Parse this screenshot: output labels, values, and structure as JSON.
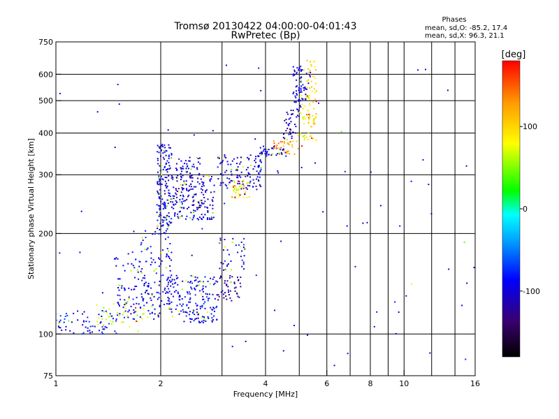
{
  "header": {
    "title": "Tromsø 20130422 04:00:00-04:01:43",
    "subtitle": "RwPretec (Bp)"
  },
  "stats": {
    "heading": "Phases",
    "line_o": "mean, sd,O: -85.2, 17.4",
    "line_x": "mean, sd,X: 96.3, 21.1"
  },
  "colorbar": {
    "label": "[deg]",
    "ticks": [
      "100",
      "0",
      "-100"
    ],
    "tick_values": [
      100,
      0,
      -100
    ],
    "range": [
      -180,
      180
    ],
    "colors": [
      "#000000",
      "#3a0070",
      "#0000ff",
      "#00aaff",
      "#00ffff",
      "#00ff00",
      "#ffff00",
      "#ff9900",
      "#ff0000"
    ]
  },
  "chart_data": {
    "type": "scatter",
    "title": "Tromsø 20130422 04:00:00-04:01:43",
    "subtitle": "RwPretec (Bp)",
    "xlabel": "Frequency [MHz]",
    "ylabel": "Stationary phase Virtual Height [km]",
    "x_scale": "log",
    "y_scale": "log",
    "xlim": [
      1,
      16
    ],
    "ylim": [
      75,
      750
    ],
    "xticks": [
      1,
      2,
      4,
      6,
      8,
      10,
      16
    ],
    "xtick_labels": [
      "1",
      "2",
      "4",
      "6",
      "8",
      "10",
      "16"
    ],
    "x_minor": [
      3,
      5,
      7,
      9,
      12,
      14
    ],
    "yticks": [
      75,
      100,
      200,
      300,
      400,
      500,
      600,
      750
    ],
    "ytick_labels": [
      "75",
      "100",
      "200",
      "300",
      "400",
      "500",
      "600",
      "750"
    ],
    "y_major_grid": [
      100,
      200,
      300,
      400,
      500,
      600
    ],
    "grid": true,
    "color_variable": "phase [deg]",
    "clusters": [
      {
        "x0": 1.0,
        "x1": 1.5,
        "y0": 100,
        "y1": 118,
        "phase": -90,
        "n": 70
      },
      {
        "x0": 1.3,
        "x1": 1.8,
        "y0": 105,
        "y1": 125,
        "phase": 70,
        "n": 35
      },
      {
        "x0": 1.5,
        "x1": 2.0,
        "y0": 110,
        "y1": 140,
        "phase": -95,
        "n": 80
      },
      {
        "x0": 1.45,
        "x1": 1.75,
        "y0": 145,
        "y1": 180,
        "phase": -100,
        "n": 25
      },
      {
        "x0": 1.75,
        "x1": 2.15,
        "y0": 120,
        "y1": 210,
        "phase": -95,
        "n": 110
      },
      {
        "x0": 1.95,
        "x1": 2.15,
        "y0": 210,
        "y1": 370,
        "phase": -100,
        "n": 160
      },
      {
        "x0": 2.1,
        "x1": 2.9,
        "y0": 108,
        "y1": 150,
        "phase": -90,
        "n": 180
      },
      {
        "x0": 2.15,
        "x1": 2.85,
        "y0": 220,
        "y1": 300,
        "phase": -105,
        "n": 200
      },
      {
        "x0": 2.2,
        "x1": 2.6,
        "y0": 300,
        "y1": 340,
        "phase": -100,
        "n": 40
      },
      {
        "x0": 2.9,
        "x1": 3.4,
        "y0": 125,
        "y1": 150,
        "phase": -125,
        "n": 45
      },
      {
        "x0": 2.95,
        "x1": 3.5,
        "y0": 155,
        "y1": 195,
        "phase": -90,
        "n": 40
      },
      {
        "x0": 2.9,
        "x1": 3.9,
        "y0": 270,
        "y1": 345,
        "phase": -100,
        "n": 120
      },
      {
        "x0": 3.2,
        "x1": 3.6,
        "y0": 255,
        "y1": 290,
        "phase": 85,
        "n": 45
      },
      {
        "x0": 3.8,
        "x1": 4.6,
        "y0": 340,
        "y1": 365,
        "phase": -95,
        "n": 45
      },
      {
        "x0": 4.2,
        "x1": 5.0,
        "y0": 345,
        "y1": 380,
        "phase": 125,
        "n": 35
      },
      {
        "x0": 4.5,
        "x1": 5.0,
        "y0": 380,
        "y1": 470,
        "phase": -110,
        "n": 40
      },
      {
        "x0": 4.8,
        "x1": 5.1,
        "y0": 470,
        "y1": 640,
        "phase": -100,
        "n": 45
      },
      {
        "x0": 4.95,
        "x1": 5.35,
        "y0": 360,
        "y1": 520,
        "phase": 80,
        "n": 35
      },
      {
        "x0": 5.25,
        "x1": 5.6,
        "y0": 380,
        "y1": 660,
        "phase": 95,
        "n": 60
      },
      {
        "x0": 5.05,
        "x1": 5.4,
        "y0": 500,
        "y1": 620,
        "phase": -100,
        "n": 25
      },
      {
        "x0": 1.0,
        "x1": 16.0,
        "y0": 80,
        "y1": 650,
        "phase": -100,
        "n": 80
      }
    ]
  }
}
